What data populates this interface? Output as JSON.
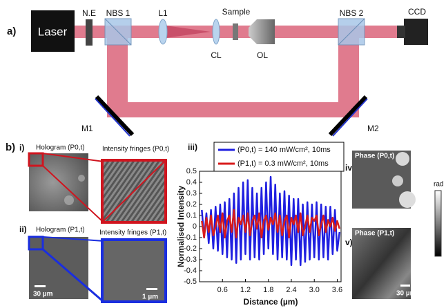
{
  "figure": {
    "panel_a": {
      "label": "a)",
      "laser": "Laser",
      "ne": "N.E",
      "nbs1": "NBS 1",
      "l1": "L1",
      "sample": "Sample",
      "nbs2": "NBS 2",
      "ccd": "CCD",
      "cl": "CL",
      "ol": "OL",
      "m1": "M1",
      "m2": "M2"
    },
    "panel_b": {
      "label": "b)",
      "i": {
        "label": "i)",
        "hologram": "Hologram (P0,t)",
        "fringes": "Intensity fringes (P0,t)"
      },
      "ii": {
        "label": "ii)",
        "hologram": "Hologram (P1,t)",
        "fringes": "Intensity fringes (P1,t)",
        "scale_left": "30 µm",
        "scale_right": "1 µm"
      },
      "iii": {
        "label": "iii)"
      },
      "iv": {
        "label": "iv)",
        "title": "Phase (P0,t)"
      },
      "v": {
        "label": "v)",
        "title": "Phase (P1,t)",
        "scale": "30 µm"
      },
      "colorbar": "rad"
    }
  },
  "chart_data": {
    "type": "line",
    "x_label": "Distance (µm)",
    "y_label": "Normalised Intensity",
    "x": [
      0.06,
      0.12,
      0.18,
      0.24,
      0.3,
      0.36,
      0.42,
      0.48,
      0.54,
      0.6,
      0.66,
      0.72,
      0.78,
      0.84,
      0.9,
      0.96,
      1.02,
      1.08,
      1.14,
      1.2,
      1.26,
      1.32,
      1.38,
      1.44,
      1.5,
      1.56,
      1.62,
      1.68,
      1.74,
      1.8,
      1.86,
      1.92,
      1.98,
      2.04,
      2.1,
      2.16,
      2.22,
      2.28,
      2.34,
      2.4,
      2.46,
      2.52,
      2.58,
      2.64,
      2.7,
      2.76,
      2.82,
      2.88,
      2.94,
      3.0,
      3.06,
      3.12,
      3.18,
      3.24,
      3.3,
      3.36,
      3.42,
      3.48,
      3.54,
      3.6,
      3.66
    ],
    "series": [
      {
        "name": "(P0,t) = 140 mW/cm², 10ms",
        "color": "#1f1fe0",
        "values": [
          0.15,
          -0.1,
          0.12,
          -0.15,
          0.15,
          -0.2,
          0.18,
          -0.22,
          0.2,
          -0.25,
          0.22,
          -0.28,
          0.25,
          -0.3,
          0.3,
          -0.33,
          0.35,
          -0.3,
          0.4,
          -0.25,
          0.42,
          -0.3,
          0.35,
          -0.28,
          0.3,
          -0.3,
          0.35,
          -0.25,
          0.4,
          -0.2,
          0.45,
          -0.25,
          0.38,
          -0.3,
          0.3,
          -0.28,
          0.32,
          -0.3,
          0.28,
          -0.35,
          0.25,
          -0.3,
          0.25,
          -0.35,
          0.2,
          -0.32,
          0.22,
          -0.3,
          0.2,
          -0.28,
          0.22,
          -0.3,
          0.2,
          -0.28,
          0.18,
          -0.3,
          0.18,
          -0.25,
          0.15,
          -0.22,
          -0.05
        ]
      },
      {
        "name": "(P1,t) = 0.3 mW/cm², 10ms",
        "color": "#d81b1b",
        "values": [
          0.05,
          -0.1,
          0.08,
          -0.05,
          0.1,
          -0.08,
          0.0,
          0.1,
          -0.05,
          0.12,
          -0.1,
          0.05,
          0.1,
          -0.05,
          0.15,
          -0.1,
          0.08,
          0.02,
          0.1,
          -0.05,
          0.12,
          -0.08,
          0.05,
          0.1,
          -0.02,
          0.12,
          -0.1,
          0.05,
          0.1,
          -0.03,
          0.08,
          0.02,
          0.12,
          -0.05,
          0.1,
          -0.08,
          0.05,
          0.1,
          -0.1,
          0.08,
          0.02,
          0.1,
          -0.05,
          0.12,
          -0.08,
          0.0,
          0.1,
          -0.05,
          0.08,
          0.05,
          0.1,
          -0.08,
          0.02,
          0.1,
          -0.05,
          0.06,
          0.0,
          0.08,
          -0.04,
          0.05,
          -0.02
        ]
      }
    ],
    "xlim": [
      0,
      3.7
    ],
    "ylim": [
      -0.5,
      0.5
    ],
    "xticks": [
      0.6,
      1.2,
      1.8,
      2.4,
      {
        "value": 3,
        "label": "3.0"
      },
      3.6
    ],
    "yticks": [
      0.5,
      0.4,
      0.3,
      0.2,
      0.1,
      0,
      -0.1,
      -0.2,
      -0.3,
      -0.4,
      -0.5
    ]
  }
}
